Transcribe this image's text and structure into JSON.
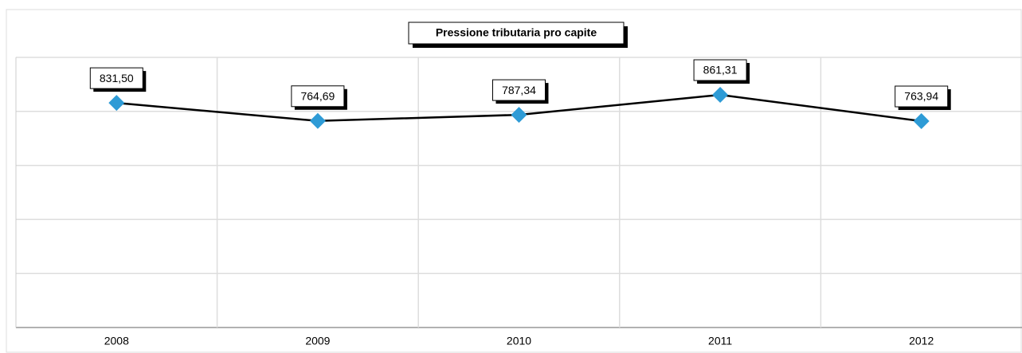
{
  "chart_data": {
    "type": "line",
    "title": "Pressione tributaria pro capite",
    "categories": [
      "2008",
      "2009",
      "2010",
      "2011",
      "2012"
    ],
    "series": [
      {
        "name": "Pressione tributaria pro capite",
        "color": "#2e9bd6",
        "line_color": "#000000",
        "values": [
          831.5,
          764.69,
          787.34,
          861.31,
          763.94
        ],
        "value_labels": [
          "831,50",
          "764,69",
          "787,34",
          "861,31",
          "763,94"
        ]
      }
    ],
    "ylim": [
      0,
      1000
    ],
    "yticks": [
      0,
      200,
      400,
      600,
      800,
      1000
    ],
    "grid": true
  }
}
